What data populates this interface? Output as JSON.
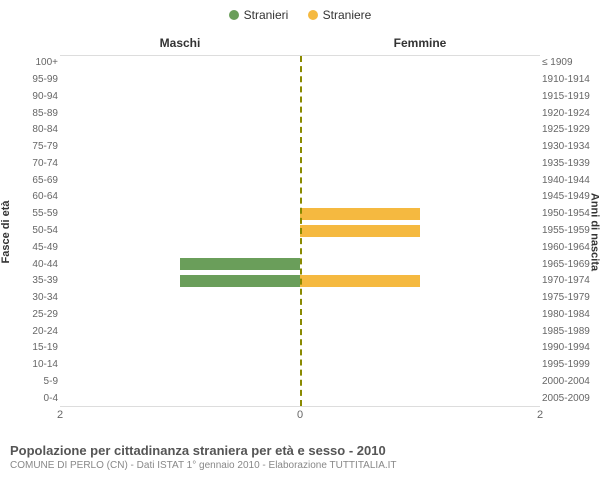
{
  "legend": {
    "items": [
      {
        "label": "Stranieri",
        "color": "#6a9e5a"
      },
      {
        "label": "Straniere",
        "color": "#f5b940"
      }
    ]
  },
  "chart": {
    "type": "population-pyramid",
    "left_title": "Maschi",
    "right_title": "Femmine",
    "y_left_title": "Fasce di età",
    "y_right_title": "Anni di nascita",
    "xmax": 2,
    "x_ticks_left": [
      2,
      0
    ],
    "x_ticks_right": [
      0,
      2
    ],
    "background_color": "#ffffff",
    "center_line_color": "#8a8a00",
    "bar_color_left": "#6a9e5a",
    "bar_color_right": "#f5b940",
    "label_fontsize": 10,
    "rows": [
      {
        "age": "100+",
        "birth": "≤ 1909",
        "m": 0,
        "f": 0
      },
      {
        "age": "95-99",
        "birth": "1910-1914",
        "m": 0,
        "f": 0
      },
      {
        "age": "90-94",
        "birth": "1915-1919",
        "m": 0,
        "f": 0
      },
      {
        "age": "85-89",
        "birth": "1920-1924",
        "m": 0,
        "f": 0
      },
      {
        "age": "80-84",
        "birth": "1925-1929",
        "m": 0,
        "f": 0
      },
      {
        "age": "75-79",
        "birth": "1930-1934",
        "m": 0,
        "f": 0
      },
      {
        "age": "70-74",
        "birth": "1935-1939",
        "m": 0,
        "f": 0
      },
      {
        "age": "65-69",
        "birth": "1940-1944",
        "m": 0,
        "f": 0
      },
      {
        "age": "60-64",
        "birth": "1945-1949",
        "m": 0,
        "f": 0
      },
      {
        "age": "55-59",
        "birth": "1950-1954",
        "m": 0,
        "f": 1
      },
      {
        "age": "50-54",
        "birth": "1955-1959",
        "m": 0,
        "f": 1
      },
      {
        "age": "45-49",
        "birth": "1960-1964",
        "m": 0,
        "f": 0
      },
      {
        "age": "40-44",
        "birth": "1965-1969",
        "m": 1,
        "f": 0
      },
      {
        "age": "35-39",
        "birth": "1970-1974",
        "m": 1,
        "f": 1
      },
      {
        "age": "30-34",
        "birth": "1975-1979",
        "m": 0,
        "f": 0
      },
      {
        "age": "25-29",
        "birth": "1980-1984",
        "m": 0,
        "f": 0
      },
      {
        "age": "20-24",
        "birth": "1985-1989",
        "m": 0,
        "f": 0
      },
      {
        "age": "15-19",
        "birth": "1990-1994",
        "m": 0,
        "f": 0
      },
      {
        "age": "10-14",
        "birth": "1995-1999",
        "m": 0,
        "f": 0
      },
      {
        "age": "5-9",
        "birth": "2000-2004",
        "m": 0,
        "f": 0
      },
      {
        "age": "0-4",
        "birth": "2005-2009",
        "m": 0,
        "f": 0
      }
    ]
  },
  "footer": {
    "title": "Popolazione per cittadinanza straniera per età e sesso - 2010",
    "subtitle": "COMUNE DI PERLO (CN) - Dati ISTAT 1° gennaio 2010 - Elaborazione TUTTITALIA.IT"
  }
}
